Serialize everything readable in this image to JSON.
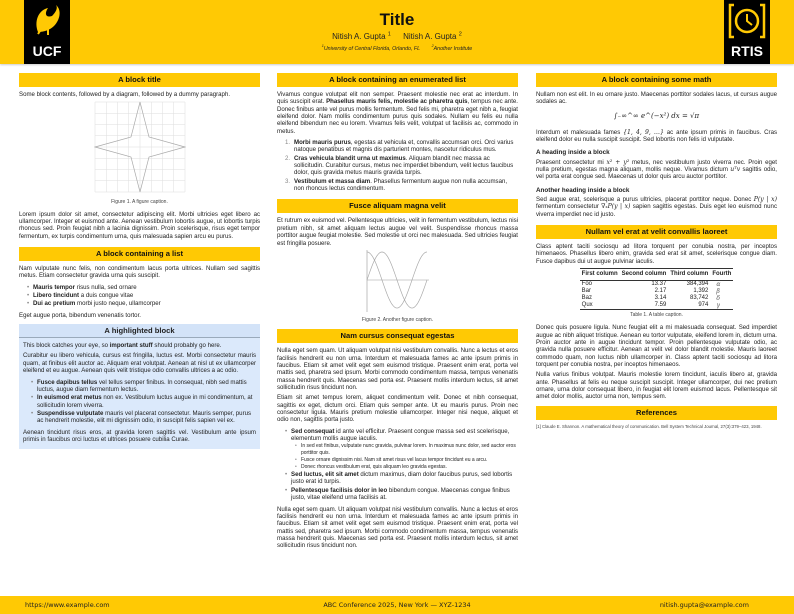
{
  "header": {
    "title": "Title",
    "authors": [
      {
        "name": "Nitish A. Gupta",
        "sup": "1"
      },
      {
        "name": "Nitish A. Gupta",
        "sup": "2"
      }
    ],
    "affiliations": [
      {
        "sup": "1",
        "name": "University of Central Florida, Orlando, FL"
      },
      {
        "sup": "2",
        "name": "Another Institute"
      }
    ],
    "logo_left": "UCF",
    "logo_right": "RTIS"
  },
  "colors": {
    "accent": "#FFC904",
    "highlight": "#dbe9fb",
    "logo_bg": "#000000"
  },
  "col1": {
    "b1": {
      "title": "A block title",
      "intro": "Some block contents, followed by a diagram, followed by a dummy paragraph.",
      "caption": "Figure 1. A figure caption.",
      "para": "Lorem ipsum dolor sit amet, consectetur adipiscing elit. Morbi ultricies eget libero ac ullamcorper. Integer et euismod ante. Aenean vestibulum lobortis augue, ut lobortis turpis rhoncus sed. Proin feugiat nibh a lacinia dignissim. Proin scelerisque, risus eget tempor fermentum, ex turpis condimentum urna, quis malesuada sapien arcu eu purus."
    },
    "b2": {
      "title": "A block containing a list",
      "intro": "Nam vulputate nunc felis, non condimentum lacus porta ultrices. Nullam sed sagittis metus. Etiam consectetur gravida urna quis suscipit.",
      "items": [
        {
          "bold": "Mauris tempor",
          "text": " risus nulla, sed ornare"
        },
        {
          "bold": "Libero tincidunt",
          "text": " a duis congue vitae"
        },
        {
          "bold": "Dui ac pretium",
          "text": " morbi justo neque, ullamcorper"
        }
      ],
      "outro": "Eget augue porta, bibendum venenatis tortor."
    },
    "b3": {
      "title": "A highlighted block",
      "p1a": "This block catches your eye, so ",
      "p1b": "important stuff",
      "p1c": " should probably go here.",
      "p2": "Curabitur eu libero vehicula, cursus est fringilla, luctus est. Morbi consectetur mauris quam, at finibus elit auctor ac. Aliquam erat volutpat. Aenean at nisl ut ex ullamcorper eleifend et eu augue. Aenean quis velit tristique odio convallis ultrices a ac odio.",
      "items": [
        {
          "bold": "Fusce dapibus tellus",
          "text": " vel tellus semper finibus. In consequat, nibh sed mattis luctus, augue diam fermentum lectus."
        },
        {
          "bold": "In euismod erat metus",
          "text": " non ex. Vestibulum luctus augue in mi condimentum, at sollicitudin lorem viverra."
        },
        {
          "bold": "Suspendisse vulputate",
          "text": " mauris vel placerat consectetur. Mauris semper, purus ac hendrerit molestie, elit mi dignissim odio, in suscipit felis sapien vel ex."
        }
      ],
      "p3": "Aenean tincidunt risus eros, at gravida lorem sagittis vel. Vestibulum ante ipsum primis in faucibus orci luctus et ultrices posuere cubilia Curae."
    }
  },
  "col2": {
    "b1": {
      "title": "A block containing an enumerated list",
      "pa": "Vivamus congue volutpat elit non semper. Praesent molestie nec erat ac interdum. In quis suscipit erat. ",
      "pb": "Phasellus mauris felis, molestie ac pharetra quis",
      "pc": ", tempus nec ante. Donec finibus ante vel purus mollis fermentum. Sed felis mi, pharetra eget nibh a, feugiat eleifend dolor. Nam mollis condimentum purus quis sodales. Nullam eu felis eu nulla eleifend bibendum nec eu lorem. Vivamus felis velit, volutpat ut facilisis ac, commodo in metus.",
      "items": [
        {
          "bold": "Morbi mauris purus",
          "text": ", egestas at vehicula et, convallis accumsan orci. Orci varius natoque penatibus et magnis dis parturient montes, nascetur ridiculus mus."
        },
        {
          "bold": "Cras vehicula blandit urna ut maximus",
          "text": ". Aliquam blandit nec massa ac sollicitudin. Curabitur cursus, metus nec imperdiet bibendum, velit lectus faucibus dolor, quis gravida metus mauris gravida turpis."
        },
        {
          "bold": "Vestibulum et massa diam",
          "text": ". Phasellus fermentum augue non nulla accumsan, non rhoncus lectus condimentum."
        }
      ]
    },
    "b2": {
      "title": "Fusce aliquam magna velit",
      "para": "Et rutrum ex euismod vel. Pellentesque ultricies, velit in fermentum vestibulum, lectus nisi pretium nibh, sit amet aliquam lectus augue vel velit. Suspendisse rhoncus massa porttitor augue feugiat molestie. Sed molestie ut orci nec malesuada. Sed ultricies feugiat est fringilla posuere.",
      "caption": "Figure 2. Another figure caption."
    },
    "b3": {
      "title": "Nam cursus consequat egestas",
      "p1": "Nulla eget sem quam. Ut aliquam volutpat nisi vestibulum convallis. Nunc a lectus et eros facilisis hendrerit eu non urna. Interdum et malesuada fames ac ante ipsum primis in faucibus. Etiam sit amet velit eget sem euismod tristique. Praesent enim erat, porta vel mattis sed, pharetra sed ipsum. Morbi commodo condimentum massa, tempus venenatis massa hendrerit quis. Maecenas sed porta est. Praesent mollis interdum lectus, sit amet sollicitudin risus tincidunt non.",
      "p2": "Etiam sit amet tempus lorem, aliquet condimentum velit. Donec et nibh consequat, sagittis ex eget, dictum orci. Etiam quis semper ante. Ut eu mauris purus. Proin nec consectetur ligula. Mauris pretium molestie ullamcorper. Integer nisi neque, aliquet et odio non, sagittis porta justo.",
      "items": [
        {
          "bold": "Sed consequat",
          "text": " id ante vel efficitur. Praesent congue massa sed est scelerisque, elementum mollis augue iaculis.",
          "sub": [
            "In sed est finibus, vulputate nunc gravida, pulvinar lorem. In maximus nunc dolor, sed auctor eros porttitor quis.",
            "Fusce ornare dignissim nisi. Nam sit amet risus vel lacus tempor tincidunt eu a arcu.",
            "Donec rhoncus vestibulum erat, quis aliquam leo gravida egestas."
          ]
        },
        {
          "bold": "Sed luctus, elit sit amet",
          "text": " dictum maximus, diam dolor faucibus purus, sed lobortis justo erat id turpis."
        },
        {
          "bold": "Pellentesque facilisis dolor in leo",
          "text": " bibendum congue. Maecenas congue finibus justo, vitae eleifend urna facilisis at."
        }
      ],
      "p3": "Nulla eget sem quam. Ut aliquam volutpat nisi vestibulum convallis. Nunc a lectus et eros facilisis hendrerit eu non urna. Interdum et malesuada fames ac ante ipsum primis in faucibus. Etiam sit amet velit eget sem euismod tristique. Praesent enim erat, porta vel mattis sed, pharetra sed ipsum. Morbi commodo condimentum massa, tempus venenatis massa hendrerit quis. Maecenas sed porta est. Praesent mollis interdum lectus, sit amet sollicitudin risus tincidunt non."
    }
  },
  "col3": {
    "b1": {
      "title": "A block containing some math",
      "p1": "Nullam non est elit. In eu ornare justo. Maecenas porttitor sodales lacus, ut cursus augue sodales ac.",
      "equation": "∫₋∞^∞ e^(−x²) dx = √π",
      "p2a": "Interdum et malesuada fames ",
      "p2m": "{1, 4, 9, …}",
      "p2b": " ac ante ipsum primis in faucibus. Cras eleifend dolor eu nulla suscipit suscipit. Sed lobortis non felis id vulputate.",
      "h1": "A heading inside a block",
      "p3a": "Praesent consectetur mi ",
      "p3m1": "x² + y²",
      "p3b": " metus, nec vestibulum justo viverra nec. Proin eget nulla pretium, egestas magna aliquam, mollis neque. Vivamus dictum ",
      "p3m2": "uᵀv",
      "p3c": " sagittis odio, vel porta erat congue sed. Maecenas ut dolor quis arcu auctor porttitor.",
      "h2": "Another heading inside a block",
      "p4a": "Sed augue erat, scelerisque a purus ultricies, placerat porttitor neque. Donec ",
      "p4m1": "P(y | x)",
      "p4b": " fermentum consectetur ",
      "p4m2": "∇ₓP(y | x)",
      "p4c": " sapien sagittis egestas. Duis eget leo euismod nunc viverra imperdiet nec id justo."
    },
    "b2": {
      "title": "Nullam vel erat at velit convallis laoreet",
      "p1": "Class aptent taciti sociosqu ad litora torquent per conubia nostra, per inceptos himenaeos. Phasellus libero enim, gravida sed erat sit amet, scelerisque congue diam. Fusce dapibus dui ut augue pulvinar iaculis.",
      "table": {
        "headers": [
          "First column",
          "Second column",
          "Third column",
          "Fourth"
        ],
        "rows": [
          [
            "Foo",
            "13.37",
            "384,394",
            "α"
          ],
          [
            "Bar",
            "2.17",
            "1,392",
            "β"
          ],
          [
            "Baz",
            "3.14",
            "83,742",
            "δ"
          ],
          [
            "Qux",
            "7.59",
            "974",
            "γ"
          ]
        ]
      },
      "caption": "Table 1. A table caption.",
      "p2": "Donec quis posuere ligula. Nunc feugiat elit a mi malesuada consequat. Sed imperdiet augue ac nibh aliquet tristique. Aenean eu tortor vulputate, eleifend lorem in, dictum urna. Proin auctor ante in augue tincidunt tempor. Proin pellentesque vulputate odio, ac gravida nulla posuere efficitur. Aenean at velit vel dolor blandit molestie. Mauris laoreet commodo quam, non luctus nibh ullamcorper in. Class aptent taciti sociosqu ad litora torquent per conubia nostra, per inceptos himenaeos.",
      "p3": "Nulla varius finibus volutpat. Mauris molestie lorem tincidunt, iaculis libero at, gravida ante. Phasellus at felis eu neque suscipit suscipit. Integer ullamcorper, dui nec pretium ornare, urna dolor consequat libero, in feugiat elit lorem euismod lacus. Pellentesque sit amet dolor mollis, auctor urna non, tempus sem."
    },
    "b3": {
      "title": "References",
      "refs": [
        "[1]  Claude E. Shannon. A mathematical theory of communication. Bell System Technical Journal, 27(3):379–423, 1948."
      ]
    }
  },
  "footer": {
    "left": "https://www.example.com",
    "center": "ABC Conference 2025, New York — XYZ-1234",
    "right": "nitish.gupta@example.com"
  }
}
